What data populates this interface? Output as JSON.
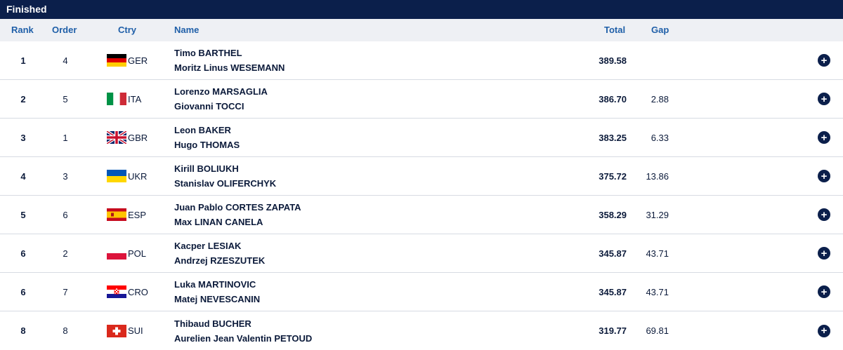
{
  "status": "Finished",
  "headers": {
    "rank": "Rank",
    "order": "Order",
    "ctry": "Ctry",
    "name": "Name",
    "total": "Total",
    "gap": "Gap"
  },
  "expand_symbol": "+",
  "rows": [
    {
      "rank": "1",
      "order": "4",
      "flag": "germany-flag",
      "ctry": "GER",
      "name1": "Timo BARTHEL",
      "name2": "Moritz Linus WESEMANN",
      "total": "389.58",
      "gap": ""
    },
    {
      "rank": "2",
      "order": "5",
      "flag": "italy-flag",
      "ctry": "ITA",
      "name1": "Lorenzo MARSAGLIA",
      "name2": "Giovanni TOCCI",
      "total": "386.70",
      "gap": "2.88"
    },
    {
      "rank": "3",
      "order": "1",
      "flag": "great-britain-flag",
      "ctry": "GBR",
      "name1": "Leon BAKER",
      "name2": "Hugo THOMAS",
      "total": "383.25",
      "gap": "6.33"
    },
    {
      "rank": "4",
      "order": "3",
      "flag": "ukraine-flag",
      "ctry": "UKR",
      "name1": "Kirill BOLIUKH",
      "name2": "Stanislav OLIFERCHYK",
      "total": "375.72",
      "gap": "13.86"
    },
    {
      "rank": "5",
      "order": "6",
      "flag": "spain-flag",
      "ctry": "ESP",
      "name1": "Juan Pablo CORTES ZAPATA",
      "name2": "Max LINAN CANELA",
      "total": "358.29",
      "gap": "31.29"
    },
    {
      "rank": "6",
      "order": "2",
      "flag": "poland-flag",
      "ctry": "POL",
      "name1": "Kacper LESIAK",
      "name2": "Andrzej RZESZUTEK",
      "total": "345.87",
      "gap": "43.71"
    },
    {
      "rank": "6",
      "order": "7",
      "flag": "croatia-flag",
      "ctry": "CRO",
      "name1": "Luka MARTINOVIC",
      "name2": "Matej NEVESCANIN",
      "total": "345.87",
      "gap": "43.71"
    },
    {
      "rank": "8",
      "order": "8",
      "flag": "switzerland-flag",
      "ctry": "SUI",
      "name1": "Thibaud BUCHER",
      "name2": "Aurelien Jean Valentin PETOUD",
      "total": "319.77",
      "gap": "69.81"
    }
  ]
}
